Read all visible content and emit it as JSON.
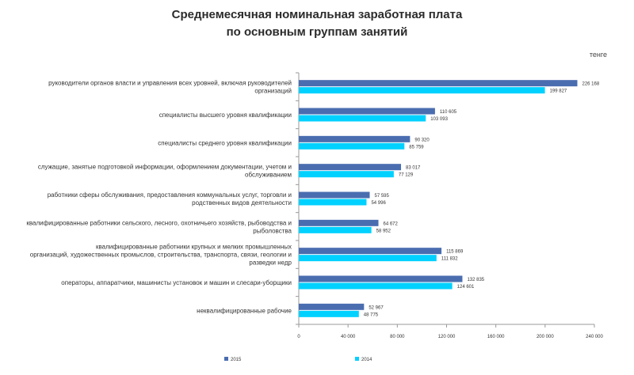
{
  "title_lines": [
    "Среднемесячная номинальная заработная плата",
    "по основным группам занятий"
  ],
  "unit": "тенге",
  "colors": {
    "series_2015": "#4A6DB0",
    "series_2014": "#00D1FF",
    "axis": "#999999"
  },
  "chart_data": {
    "type": "bar",
    "orientation": "horizontal",
    "title": "Среднемесячная номинальная заработная плата по основным группам занятий",
    "xlabel": "",
    "ylabel": "",
    "xlim": [
      0,
      240000
    ],
    "ticks": [
      0,
      40000,
      80000,
      120000,
      160000,
      200000,
      240000
    ],
    "tick_labels": [
      "0",
      "40 000",
      "80 000",
      "120 000",
      "160 000",
      "200 000",
      "240 000"
    ],
    "legend_position": "bottom",
    "categories": [
      [
        "руководители органов власти и управления всех уровней, включая руководителей",
        "организаций"
      ],
      [
        "специалисты высшего уровня квалификации"
      ],
      [
        "специалисты среднего уровня квалификации"
      ],
      [
        "служащие, занятые подготовкой информации, оформлением документации, учетом и",
        "обслуживанием"
      ],
      [
        "работники сферы обслуживания, предоставления коммунальных услуг, торговли и",
        "родственных видов деятельности"
      ],
      [
        "квалифицированные работники сельского, лесного, охотничьего хозяйств, рыбоводства и",
        "рыболовства"
      ],
      [
        "квалифицированные работники крупных и мелких промышленных",
        "организаций, художественных промыслов, строительства, транспорта, связи, геологии и",
        "разведки недр"
      ],
      [
        "операторы, аппаратчики, машинисты установок и машин и слесари-уборщики"
      ],
      [
        "неквалифицированные рабочие"
      ]
    ],
    "series": [
      {
        "name": "2015",
        "values": [
          226168,
          110605,
          90320,
          83017,
          57595,
          64672,
          115869,
          132835,
          52967
        ],
        "labels": [
          "226 168",
          "110 605",
          "90 320",
          "83 017",
          "57 595",
          "64 672",
          "115 869",
          "132 835",
          "52 967"
        ]
      },
      {
        "name": "2014",
        "values": [
          199827,
          103093,
          85759,
          77129,
          54996,
          58952,
          111832,
          124601,
          48775
        ],
        "labels": [
          "199 827",
          "103 093",
          "85 759",
          "77 129",
          "54 996",
          "58 952",
          "111 832",
          "124 601",
          "48 775"
        ]
      }
    ]
  }
}
